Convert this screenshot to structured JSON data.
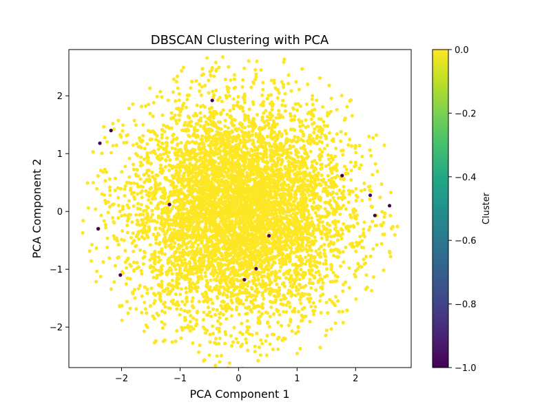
{
  "chart_data": {
    "type": "scatter",
    "title": "DBSCAN Clustering with PCA",
    "xlabel": "PCA Component 1",
    "ylabel": "PCA Component 2",
    "xlim": [
      -2.9,
      2.95
    ],
    "ylim": [
      -2.7,
      2.8
    ],
    "xticks": [
      -2,
      -1,
      0,
      1,
      2
    ],
    "yticks": [
      -2,
      -1,
      0,
      1,
      2
    ],
    "xtick_labels": [
      "−2",
      "−1",
      "0",
      "1",
      "2"
    ],
    "ytick_labels": [
      "−2",
      "−1",
      "0",
      "1",
      "2"
    ],
    "grid": false,
    "colormap": "viridis",
    "colorbar": {
      "label": "Cluster",
      "range": [
        -1.0,
        0.0
      ],
      "ticks": [
        0.0,
        -0.2,
        -0.4,
        -0.6,
        -0.8,
        -1.0
      ],
      "tick_labels": [
        "0.0",
        "−0.2",
        "−0.4",
        "−0.6",
        "−0.8",
        "−1.0"
      ]
    },
    "series": [
      {
        "label_value": 0,
        "color": "#fde725",
        "distribution": "dense cloud of about 6000 points centered near (0, 0), spread roughly from −2.6 to 2.6 on both components",
        "point_count_estimate": 6000
      },
      {
        "label_value": -1,
        "color": "#440154",
        "points": [
          {
            "x": -2.18,
            "y": 1.4
          },
          {
            "x": -2.37,
            "y": 1.18
          },
          {
            "x": -0.45,
            "y": 1.92
          },
          {
            "x": 1.77,
            "y": 0.62
          },
          {
            "x": 2.25,
            "y": 0.28
          },
          {
            "x": 2.58,
            "y": 0.1
          },
          {
            "x": 2.33,
            "y": -0.07
          },
          {
            "x": -2.4,
            "y": -0.3
          },
          {
            "x": -1.18,
            "y": 0.12
          },
          {
            "x": 0.52,
            "y": -0.42
          },
          {
            "x": 0.3,
            "y": -0.99
          },
          {
            "x": 0.1,
            "y": -1.18
          },
          {
            "x": -2.02,
            "y": -1.1
          }
        ]
      }
    ]
  }
}
